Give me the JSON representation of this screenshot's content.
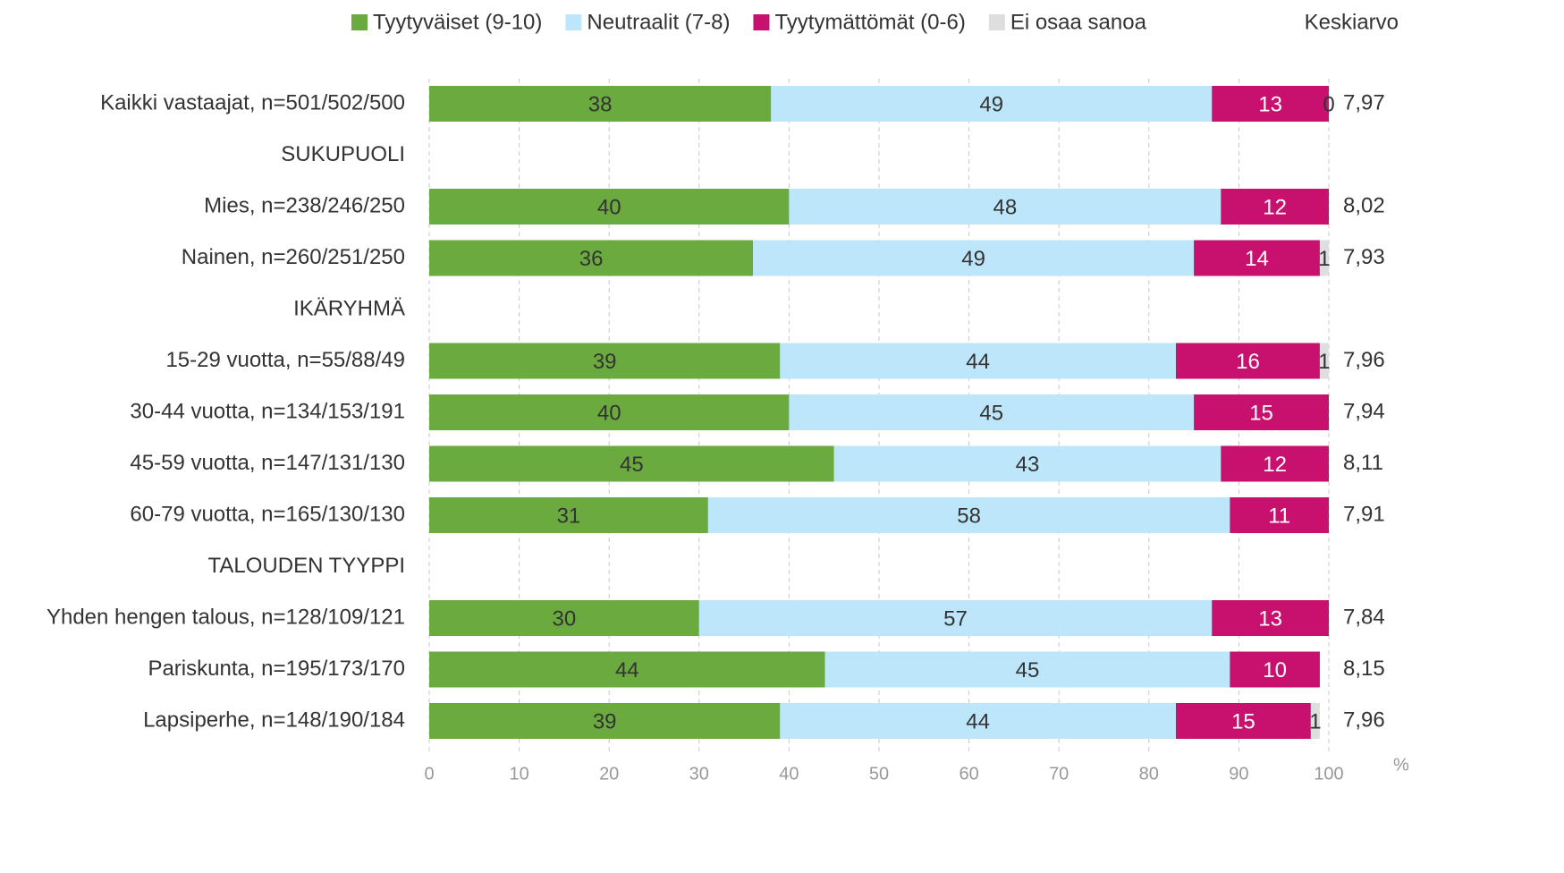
{
  "chart_data": {
    "type": "stacked_bar_horizontal",
    "categories": [
      "Kaikki vastaajat, n=501/502/500",
      "SUKUPUOLI",
      "Mies, n=238/246/250",
      "Nainen, n=260/251/250",
      "IKÄRYHMÄ",
      "15-29 vuotta, n=55/88/49",
      "30-44 vuotta, n=134/153/191",
      "45-59 vuotta, n=147/131/130",
      "60-79 vuotta, n=165/130/130",
      "TALOUDEN TYYPPI",
      "Yhden hengen talous, n=128/109/121",
      "Pariskunta, n=195/173/170",
      "Lapsiperhe, n=148/190/184"
    ],
    "series": [
      {
        "name": "Tyytyväiset (9-10)",
        "color": "#6aaa3f",
        "values": [
          38,
          null,
          40,
          36,
          null,
          39,
          40,
          45,
          31,
          null,
          30,
          44,
          39
        ]
      },
      {
        "name": "Neutraalit (7-8)",
        "color": "#bde6fa",
        "values": [
          49,
          null,
          48,
          49,
          null,
          44,
          45,
          43,
          58,
          null,
          57,
          45,
          44
        ]
      },
      {
        "name": "Tyytymättömät (0-6)",
        "color": "#c8106e",
        "values": [
          13,
          null,
          12,
          14,
          null,
          16,
          15,
          12,
          11,
          null,
          13,
          10,
          15
        ]
      },
      {
        "name": "Ei osaa sanoa",
        "color": "#dedede",
        "values": [
          0,
          null,
          null,
          1,
          null,
          1,
          null,
          null,
          null,
          null,
          null,
          null,
          1
        ]
      }
    ],
    "mean_title": "Keskiarvo",
    "means": [
      "7,97",
      null,
      "8,02",
      "7,93",
      null,
      "7,96",
      "7,94",
      "8,11",
      "7,91",
      null,
      "7,84",
      "8,15",
      "7,96"
    ],
    "x_label": "%",
    "xlim": [
      0,
      100
    ],
    "xticks": [
      0,
      10,
      20,
      30,
      40,
      50,
      60,
      70,
      80,
      90,
      100
    ],
    "grid": true
  }
}
